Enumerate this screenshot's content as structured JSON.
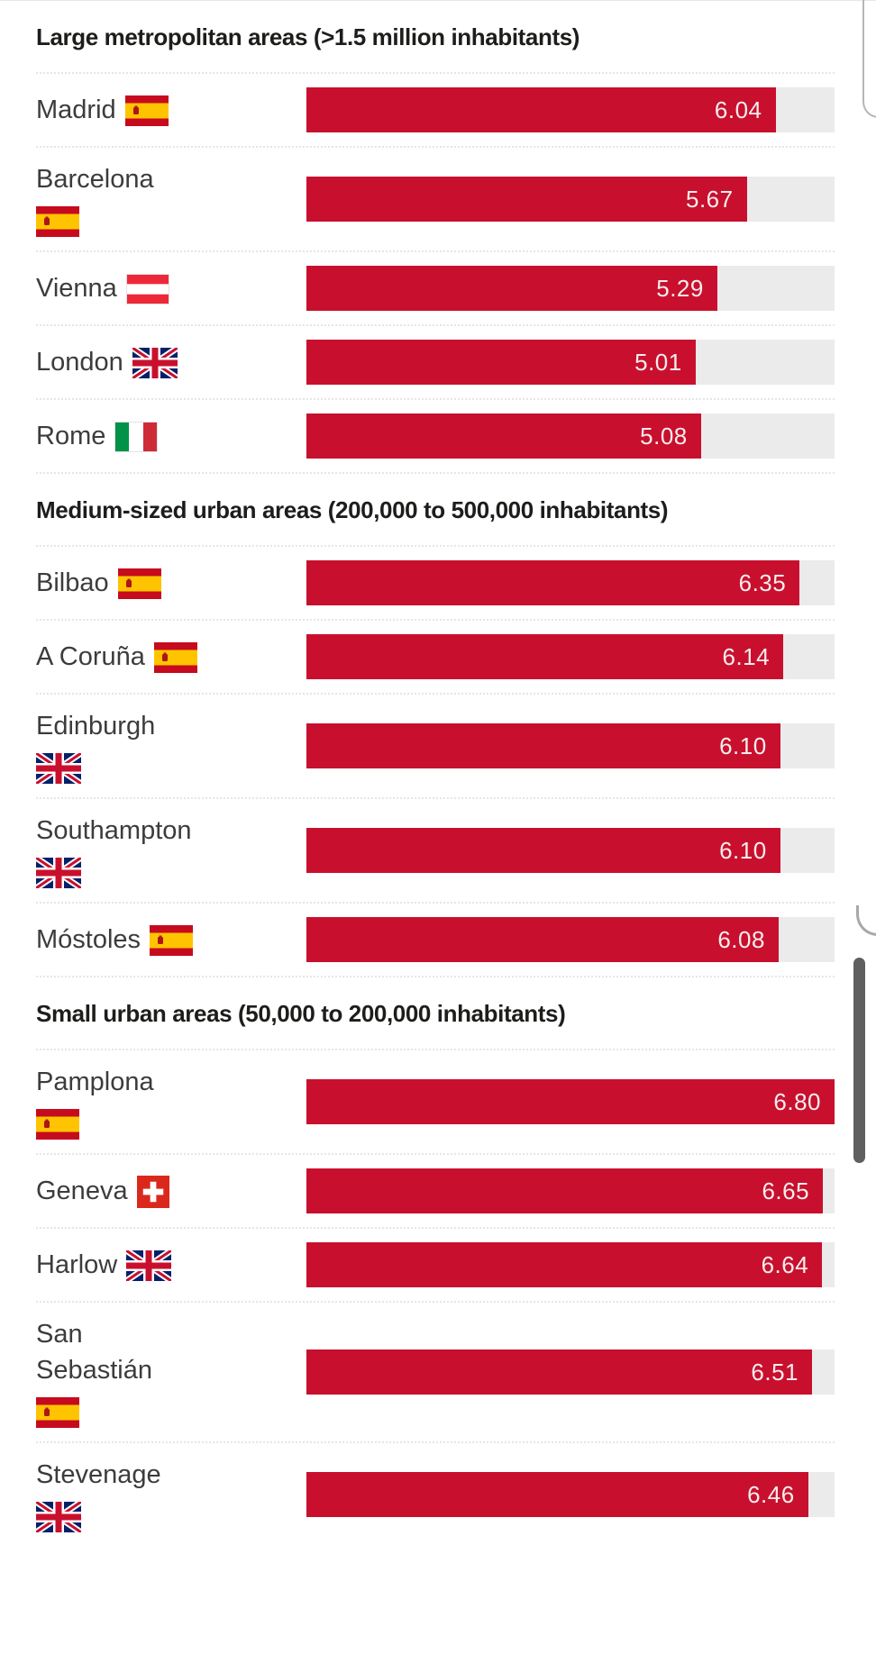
{
  "colors": {
    "bar": "#c8102e",
    "track": "#ebebeb",
    "value_text": "#f7edee",
    "heading_text": "#1d1d1b",
    "label_text": "#3c3c3c",
    "scrollbar_thumb": "#5f5f5f"
  },
  "chart_data": {
    "type": "bar",
    "orientation": "horizontal",
    "value_axis_range": [
      0,
      6.8
    ],
    "grid": false,
    "legend": false,
    "sections": [
      {
        "title": "Large metropolitan areas (>1.5 million inhabitants)",
        "rows": [
          {
            "name": "Madrid",
            "country": "Spain",
            "flag": "es",
            "flag_below": false,
            "value": 6.04,
            "value_label": "6.04"
          },
          {
            "name": "Barcelona",
            "country": "Spain",
            "flag": "es",
            "flag_below": true,
            "value": 5.67,
            "value_label": "5.67"
          },
          {
            "name": "Vienna",
            "country": "Austria",
            "flag": "at",
            "flag_below": false,
            "value": 5.29,
            "value_label": "5.29"
          },
          {
            "name": "London",
            "country": "United Kingdom",
            "flag": "gb",
            "flag_below": false,
            "value": 5.01,
            "value_label": "5.01"
          },
          {
            "name": "Rome",
            "country": "Italy",
            "flag": "it",
            "flag_below": false,
            "value": 5.08,
            "value_label": "5.08"
          }
        ]
      },
      {
        "title": "Medium-sized urban areas (200,000 to 500,000 inhabitants)",
        "rows": [
          {
            "name": "Bilbao",
            "country": "Spain",
            "flag": "es",
            "flag_below": false,
            "value": 6.35,
            "value_label": "6.35"
          },
          {
            "name": "A Coruña",
            "country": "Spain",
            "flag": "es",
            "flag_below": false,
            "value": 6.14,
            "value_label": "6.14"
          },
          {
            "name": "Edinburgh",
            "country": "United Kingdom",
            "flag": "gb",
            "flag_below": true,
            "value": 6.1,
            "value_label": "6.10"
          },
          {
            "name": "Southampton",
            "country": "United Kingdom",
            "flag": "gb",
            "flag_below": true,
            "value": 6.1,
            "value_label": "6.10"
          },
          {
            "name": "Móstoles",
            "country": "Spain",
            "flag": "es",
            "flag_below": false,
            "value": 6.08,
            "value_label": "6.08"
          }
        ]
      },
      {
        "title": "Small urban areas (50,000 to 200,000 inhabitants)",
        "rows": [
          {
            "name": "Pamplona",
            "country": "Spain",
            "flag": "es",
            "flag_below": true,
            "value": 6.8,
            "value_label": "6.80"
          },
          {
            "name": "Geneva",
            "country": "Switzerland",
            "flag": "ch",
            "flag_below": false,
            "value": 6.65,
            "value_label": "6.65"
          },
          {
            "name": "Harlow",
            "country": "United Kingdom",
            "flag": "gb",
            "flag_below": false,
            "value": 6.64,
            "value_label": "6.64"
          },
          {
            "name": "San\nSebastián",
            "country": "Spain",
            "flag": "es",
            "flag_below": true,
            "value": 6.51,
            "value_label": "6.51"
          },
          {
            "name": "Stevenage",
            "country": "United Kingdom",
            "flag": "gb",
            "flag_below": true,
            "value": 6.46,
            "value_label": "6.46"
          }
        ]
      }
    ]
  }
}
